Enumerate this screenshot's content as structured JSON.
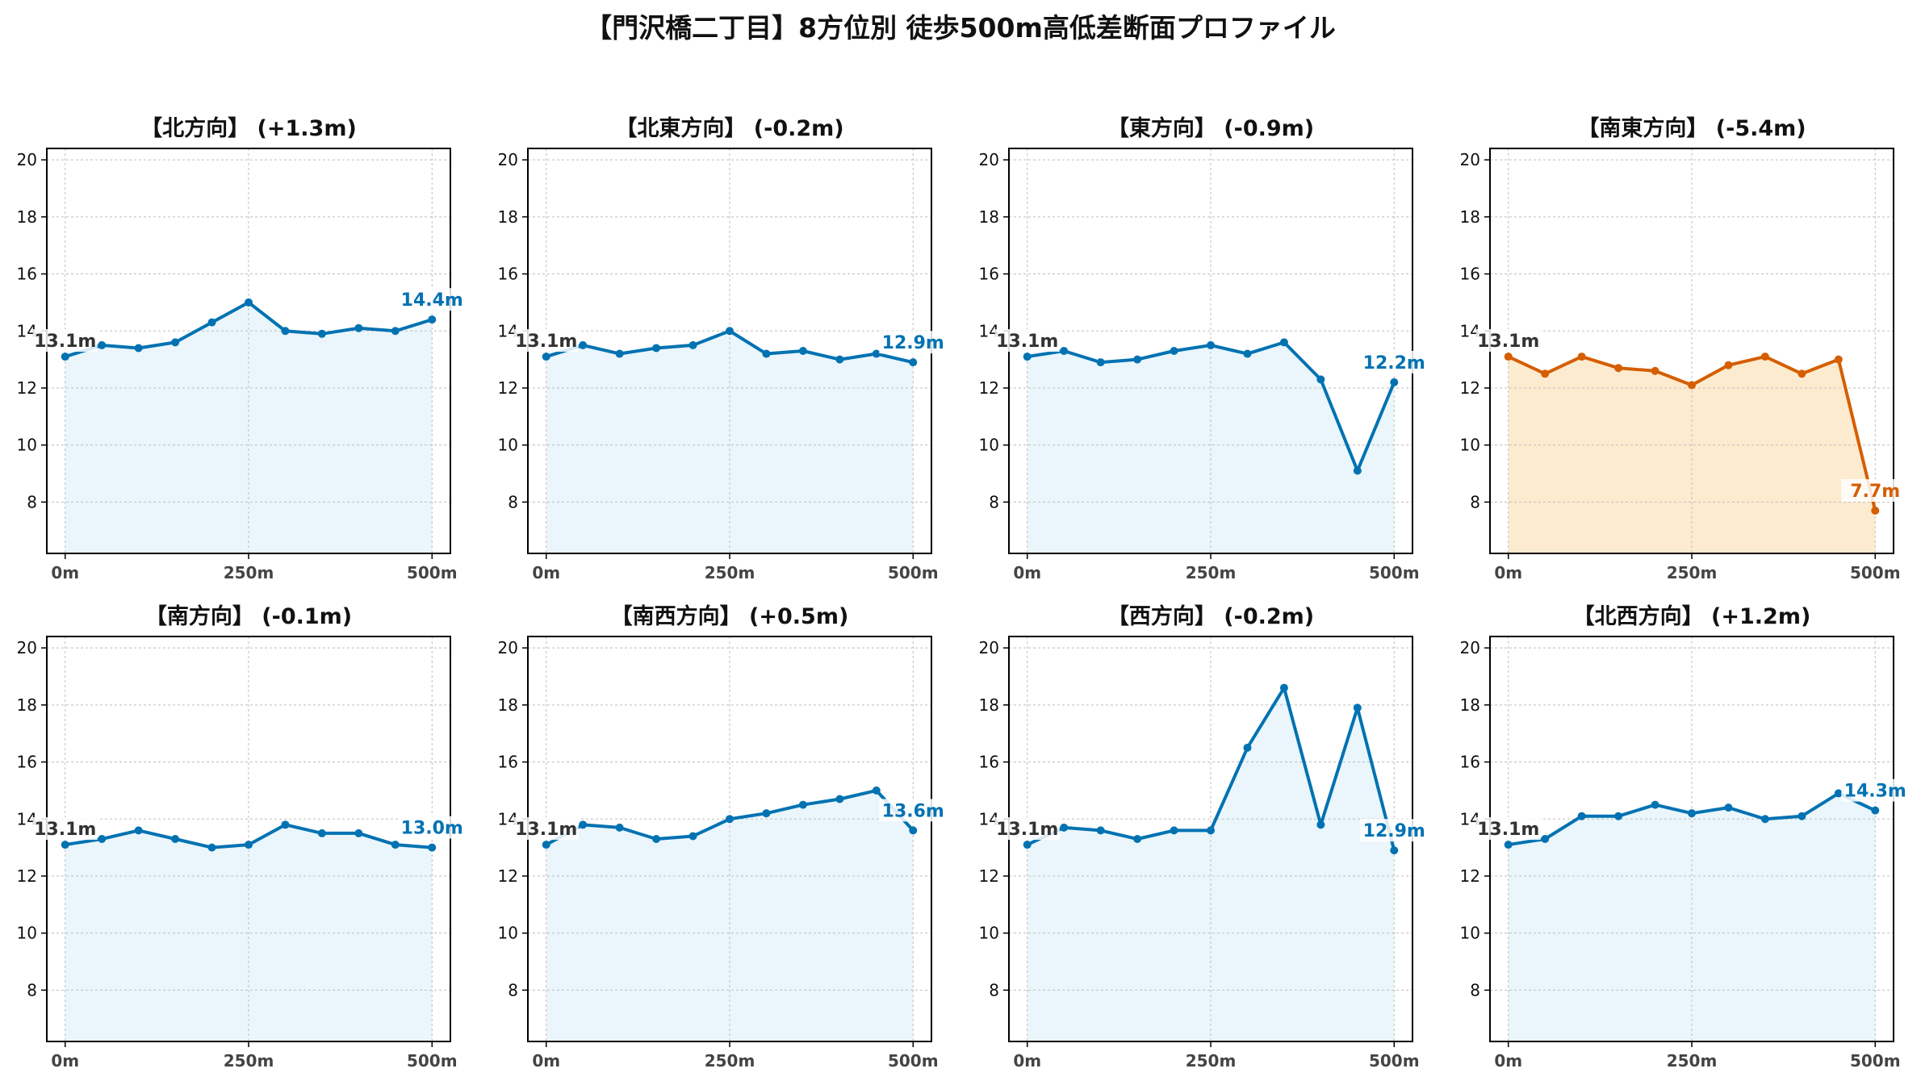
{
  "title": "【門沢橋二丁目】8方位別 徒歩500m高低差断面プロファイル",
  "colors": {
    "normal": "#0072B2",
    "normal_fill": "#EAF6FB",
    "alert": "#D55E00",
    "alert_fill": "#FDEBD0",
    "start_label": "#333333"
  },
  "chart_data": [
    {
      "type": "area",
      "title": "【北方向】 (+1.3m)",
      "x": [
        0,
        50,
        100,
        150,
        200,
        250,
        300,
        350,
        400,
        450,
        500
      ],
      "values": [
        13.1,
        13.5,
        13.4,
        13.6,
        14.3,
        15.0,
        14.0,
        13.9,
        14.1,
        14.0,
        14.4
      ],
      "start_label": "13.1m",
      "end_label": "14.4m",
      "alert": false,
      "xticks": [
        "0m",
        "250m",
        "500m"
      ],
      "yticks": [
        "8",
        "10",
        "12",
        "14",
        "16",
        "18",
        "20"
      ],
      "ylim": [
        6.2,
        20.4
      ],
      "xlim": [
        -25,
        525
      ],
      "grid": true
    },
    {
      "type": "area",
      "title": "【北東方向】 (-0.2m)",
      "x": [
        0,
        50,
        100,
        150,
        200,
        250,
        300,
        350,
        400,
        450,
        500
      ],
      "values": [
        13.1,
        13.5,
        13.2,
        13.4,
        13.5,
        14.0,
        13.2,
        13.3,
        13.0,
        13.2,
        12.9
      ],
      "start_label": "13.1m",
      "end_label": "12.9m",
      "alert": false,
      "xticks": [
        "0m",
        "250m",
        "500m"
      ],
      "yticks": [
        "8",
        "10",
        "12",
        "14",
        "16",
        "18",
        "20"
      ],
      "ylim": [
        6.2,
        20.4
      ],
      "xlim": [
        -25,
        525
      ],
      "grid": true
    },
    {
      "type": "area",
      "title": "【東方向】 (-0.9m)",
      "x": [
        0,
        50,
        100,
        150,
        200,
        250,
        300,
        350,
        400,
        450,
        500
      ],
      "values": [
        13.1,
        13.3,
        12.9,
        13.0,
        13.3,
        13.5,
        13.2,
        13.6,
        12.3,
        9.1,
        12.2
      ],
      "start_label": "13.1m",
      "end_label": "12.2m",
      "alert": false,
      "xticks": [
        "0m",
        "250m",
        "500m"
      ],
      "yticks": [
        "8",
        "10",
        "12",
        "14",
        "16",
        "18",
        "20"
      ],
      "ylim": [
        6.2,
        20.4
      ],
      "xlim": [
        -25,
        525
      ],
      "grid": true
    },
    {
      "type": "area",
      "title": "【南東方向】 (-5.4m)",
      "x": [
        0,
        50,
        100,
        150,
        200,
        250,
        300,
        350,
        400,
        450,
        500
      ],
      "values": [
        13.1,
        12.5,
        13.1,
        12.7,
        12.6,
        12.1,
        12.8,
        13.1,
        12.5,
        13.0,
        7.7
      ],
      "start_label": "13.1m",
      "end_label": "7.7m",
      "alert": true,
      "xticks": [
        "0m",
        "250m",
        "500m"
      ],
      "yticks": [
        "8",
        "10",
        "12",
        "14",
        "16",
        "18",
        "20"
      ],
      "ylim": [
        6.2,
        20.4
      ],
      "xlim": [
        -25,
        525
      ],
      "grid": true
    },
    {
      "type": "area",
      "title": "【南方向】 (-0.1m)",
      "x": [
        0,
        50,
        100,
        150,
        200,
        250,
        300,
        350,
        400,
        450,
        500
      ],
      "values": [
        13.1,
        13.3,
        13.6,
        13.3,
        13.0,
        13.1,
        13.8,
        13.5,
        13.5,
        13.1,
        13.0
      ],
      "start_label": "13.1m",
      "end_label": "13.0m",
      "alert": false,
      "xticks": [
        "0m",
        "250m",
        "500m"
      ],
      "yticks": [
        "8",
        "10",
        "12",
        "14",
        "16",
        "18",
        "20"
      ],
      "ylim": [
        6.2,
        20.4
      ],
      "xlim": [
        -25,
        525
      ],
      "grid": true
    },
    {
      "type": "area",
      "title": "【南西方向】 (+0.5m)",
      "x": [
        0,
        50,
        100,
        150,
        200,
        250,
        300,
        350,
        400,
        450,
        500
      ],
      "values": [
        13.1,
        13.8,
        13.7,
        13.3,
        13.4,
        14.0,
        14.2,
        14.5,
        14.7,
        15.0,
        13.6
      ],
      "start_label": "13.1m",
      "end_label": "13.6m",
      "alert": false,
      "xticks": [
        "0m",
        "250m",
        "500m"
      ],
      "yticks": [
        "8",
        "10",
        "12",
        "14",
        "16",
        "18",
        "20"
      ],
      "ylim": [
        6.2,
        20.4
      ],
      "xlim": [
        -25,
        525
      ],
      "grid": true
    },
    {
      "type": "area",
      "title": "【西方向】 (-0.2m)",
      "x": [
        0,
        50,
        100,
        150,
        200,
        250,
        300,
        350,
        400,
        450,
        500
      ],
      "values": [
        13.1,
        13.7,
        13.6,
        13.3,
        13.6,
        13.6,
        16.5,
        18.6,
        13.8,
        17.9,
        12.9
      ],
      "start_label": "13.1m",
      "end_label": "12.9m",
      "alert": false,
      "xticks": [
        "0m",
        "250m",
        "500m"
      ],
      "yticks": [
        "8",
        "10",
        "12",
        "14",
        "16",
        "18",
        "20"
      ],
      "ylim": [
        6.2,
        20.4
      ],
      "xlim": [
        -25,
        525
      ],
      "grid": true
    },
    {
      "type": "area",
      "title": "【北西方向】 (+1.2m)",
      "x": [
        0,
        50,
        100,
        150,
        200,
        250,
        300,
        350,
        400,
        450,
        500
      ],
      "values": [
        13.1,
        13.3,
        14.1,
        14.1,
        14.5,
        14.2,
        14.4,
        14.0,
        14.1,
        14.9,
        14.3
      ],
      "start_label": "13.1m",
      "end_label": "14.3m",
      "alert": false,
      "xticks": [
        "0m",
        "250m",
        "500m"
      ],
      "yticks": [
        "8",
        "10",
        "12",
        "14",
        "16",
        "18",
        "20"
      ],
      "ylim": [
        6.2,
        20.4
      ],
      "xlim": [
        -25,
        525
      ],
      "grid": true
    }
  ]
}
